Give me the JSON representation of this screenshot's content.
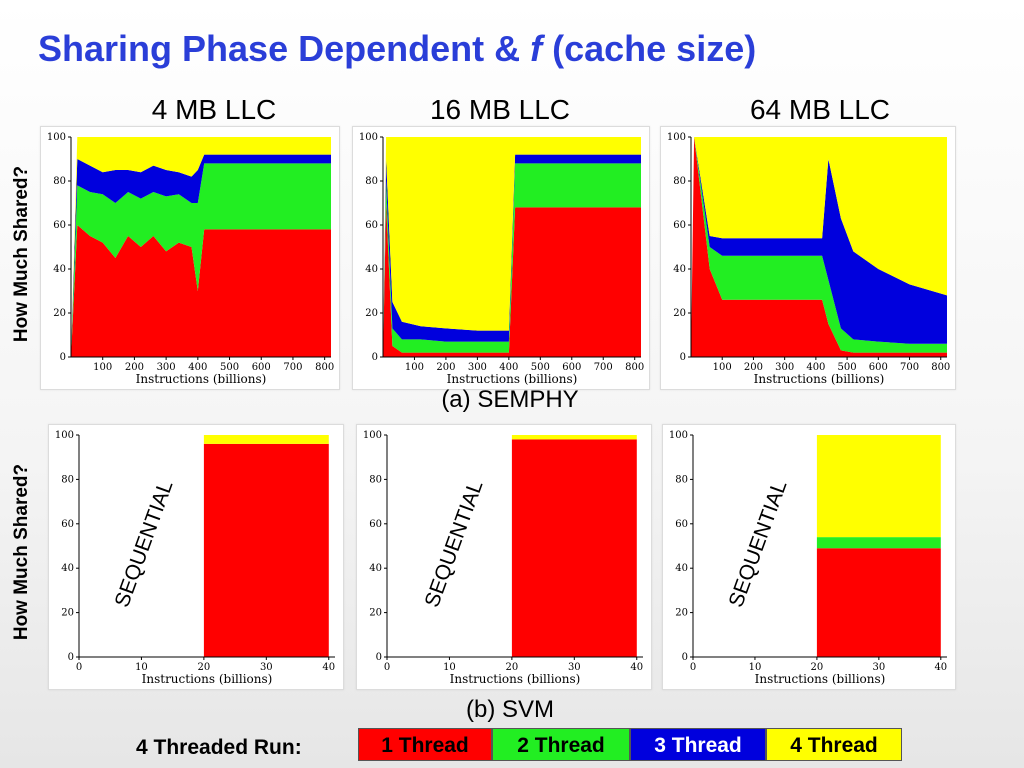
{
  "slide": {
    "title_main": "Sharing Phase Dependent & ",
    "title_f": "f",
    "title_tail": " (cache size)"
  },
  "columns": [
    "4 MB LLC",
    "16 MB LLC",
    "64 MB LLC"
  ],
  "ylabel": "How Much Shared?",
  "captions": {
    "semphy": "(a) SEMPHY",
    "svm": "(b) SVM"
  },
  "sequential_label": "SEQUENTIAL",
  "legend": {
    "label": "4 Threaded Run:",
    "items": [
      {
        "name": "1 Thread",
        "color": "#ff0000",
        "text_color": "#000000"
      },
      {
        "name": "2 Thread",
        "color": "#22ee22",
        "text_color": "#000000"
      },
      {
        "name": "3 Thread",
        "color": "#0000dd",
        "text_color": "#ffffff"
      },
      {
        "name": "4 Thread",
        "color": "#ffff00",
        "text_color": "#000000"
      }
    ]
  },
  "chart_data": [
    {
      "type": "area",
      "stacked": true,
      "cache": "4 MB LLC",
      "benchmark": "SEMPHY",
      "xlabel": "Instructions (billions)",
      "ylabel": "",
      "xlim": [
        0,
        820
      ],
      "ylim": [
        0,
        100
      ],
      "xticks": [
        100,
        200,
        300,
        400,
        500,
        600,
        700,
        800
      ],
      "yticks": [
        0,
        20,
        40,
        60,
        80,
        100
      ],
      "x": [
        0,
        20,
        60,
        100,
        140,
        180,
        220,
        260,
        300,
        340,
        380,
        400,
        420,
        440,
        820
      ],
      "series": [
        {
          "name": "1 Thread",
          "values": [
            0,
            60,
            55,
            52,
            45,
            55,
            50,
            55,
            48,
            52,
            50,
            30,
            58,
            58,
            58
          ]
        },
        {
          "name": "2 Thread",
          "values": [
            0,
            18,
            20,
            22,
            25,
            20,
            22,
            20,
            25,
            22,
            20,
            40,
            30,
            30,
            30
          ]
        },
        {
          "name": "3 Thread",
          "values": [
            0,
            12,
            12,
            10,
            15,
            10,
            12,
            12,
            12,
            10,
            12,
            15,
            4,
            4,
            4
          ]
        },
        {
          "name": "4 Thread",
          "values": [
            0,
            10,
            13,
            16,
            15,
            15,
            16,
            13,
            15,
            16,
            18,
            15,
            8,
            8,
            8
          ]
        }
      ]
    },
    {
      "type": "area",
      "stacked": true,
      "cache": "16 MB LLC",
      "benchmark": "SEMPHY",
      "xlabel": "Instructions (billions)",
      "ylabel": "",
      "xlim": [
        0,
        820
      ],
      "ylim": [
        0,
        100
      ],
      "xticks": [
        100,
        200,
        300,
        400,
        500,
        600,
        700,
        800
      ],
      "yticks": [
        0,
        20,
        40,
        60,
        80,
        100
      ],
      "x": [
        0,
        10,
        30,
        60,
        120,
        200,
        300,
        400,
        420,
        440,
        820
      ],
      "series": [
        {
          "name": "1 Thread",
          "values": [
            0,
            70,
            5,
            2,
            2,
            2,
            2,
            2,
            68,
            68,
            68
          ]
        },
        {
          "name": "2 Thread",
          "values": [
            0,
            10,
            8,
            6,
            6,
            5,
            5,
            5,
            20,
            20,
            20
          ]
        },
        {
          "name": "3 Thread",
          "values": [
            0,
            10,
            12,
            8,
            6,
            6,
            5,
            5,
            4,
            4,
            4
          ]
        },
        {
          "name": "4 Thread",
          "values": [
            0,
            10,
            75,
            84,
            86,
            87,
            88,
            88,
            8,
            8,
            8
          ]
        }
      ]
    },
    {
      "type": "area",
      "stacked": true,
      "cache": "64 MB LLC",
      "benchmark": "SEMPHY",
      "xlabel": "Instructions (billions)",
      "ylabel": "",
      "xlim": [
        0,
        820
      ],
      "ylim": [
        0,
        100
      ],
      "xticks": [
        100,
        200,
        300,
        400,
        500,
        600,
        700,
        800
      ],
      "yticks": [
        0,
        20,
        40,
        60,
        80,
        100
      ],
      "x": [
        0,
        10,
        60,
        100,
        420,
        440,
        480,
        520,
        600,
        700,
        820
      ],
      "series": [
        {
          "name": "1 Thread",
          "values": [
            0,
            100,
            40,
            26,
            26,
            15,
            3,
            2,
            2,
            2,
            2
          ]
        },
        {
          "name": "2 Thread",
          "values": [
            0,
            0,
            10,
            20,
            20,
            20,
            10,
            6,
            5,
            4,
            4
          ]
        },
        {
          "name": "3 Thread",
          "values": [
            0,
            0,
            5,
            8,
            8,
            55,
            50,
            40,
            33,
            27,
            22
          ]
        },
        {
          "name": "4 Thread",
          "values": [
            0,
            0,
            45,
            46,
            46,
            10,
            37,
            52,
            60,
            67,
            72
          ]
        }
      ]
    },
    {
      "type": "area",
      "stacked": true,
      "cache": "4 MB LLC",
      "benchmark": "SVM",
      "xlabel": "Instructions (billions)",
      "ylabel": "",
      "xlim": [
        0,
        41
      ],
      "ylim": [
        0,
        100
      ],
      "xticks": [
        0,
        10,
        20,
        30,
        40
      ],
      "yticks": [
        0,
        20,
        40,
        60,
        80,
        100
      ],
      "x": [
        20,
        40
      ],
      "series": [
        {
          "name": "1 Thread",
          "values": [
            96,
            96
          ]
        },
        {
          "name": "4 Thread",
          "values": [
            4,
            4
          ]
        }
      ]
    },
    {
      "type": "area",
      "stacked": true,
      "cache": "16 MB LLC",
      "benchmark": "SVM",
      "xlabel": "Instructions (billions)",
      "ylabel": "",
      "xlim": [
        0,
        41
      ],
      "ylim": [
        0,
        100
      ],
      "xticks": [
        0,
        10,
        20,
        30,
        40
      ],
      "yticks": [
        0,
        20,
        40,
        60,
        80,
        100
      ],
      "x": [
        20,
        40
      ],
      "series": [
        {
          "name": "1 Thread",
          "values": [
            98,
            98
          ]
        },
        {
          "name": "4 Thread",
          "values": [
            2,
            2
          ]
        }
      ]
    },
    {
      "type": "area",
      "stacked": true,
      "cache": "64 MB LLC",
      "benchmark": "SVM",
      "xlabel": "Instructions (billions)",
      "ylabel": "",
      "xlim": [
        0,
        41
      ],
      "ylim": [
        0,
        100
      ],
      "xticks": [
        0,
        10,
        20,
        30,
        40
      ],
      "yticks": [
        0,
        20,
        40,
        60,
        80,
        100
      ],
      "x": [
        20,
        40
      ],
      "series": [
        {
          "name": "1 Thread",
          "values": [
            49,
            49
          ]
        },
        {
          "name": "2 Thread",
          "values": [
            5,
            5
          ]
        },
        {
          "name": "4 Thread",
          "values": [
            46,
            46
          ]
        }
      ]
    }
  ]
}
